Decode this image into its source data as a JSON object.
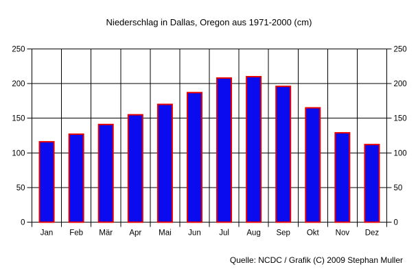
{
  "title": "Niederschlag in Dallas, Oregon aus 1971-2000 (cm)",
  "source_note": "Quelle: NCDC / Grafik (C) 2009 Stephan Muller",
  "colors": {
    "bar_fill": "#0b0bf0",
    "bar_border": "#e60000",
    "grid": "#000000",
    "text": "#000000",
    "background": "#ffffff"
  },
  "chart_data": {
    "type": "bar",
    "title": "Niederschlag in Dallas, Oregon aus 1971-2000 (cm)",
    "categories": [
      "Jan",
      "Feb",
      "Mär",
      "Apr",
      "Mai",
      "Jun",
      "Jul",
      "Aug",
      "Sep",
      "Okt",
      "Nov",
      "Dez"
    ],
    "values": [
      116,
      127,
      141,
      155,
      170,
      187,
      208,
      210,
      196,
      165,
      129,
      112
    ],
    "xlabel": "",
    "ylabel": "",
    "ylim": [
      0,
      250
    ],
    "yticks": [
      0,
      50,
      100,
      150,
      200,
      250
    ],
    "grid": true,
    "y_axis_sides": "both",
    "legend": "none"
  }
}
